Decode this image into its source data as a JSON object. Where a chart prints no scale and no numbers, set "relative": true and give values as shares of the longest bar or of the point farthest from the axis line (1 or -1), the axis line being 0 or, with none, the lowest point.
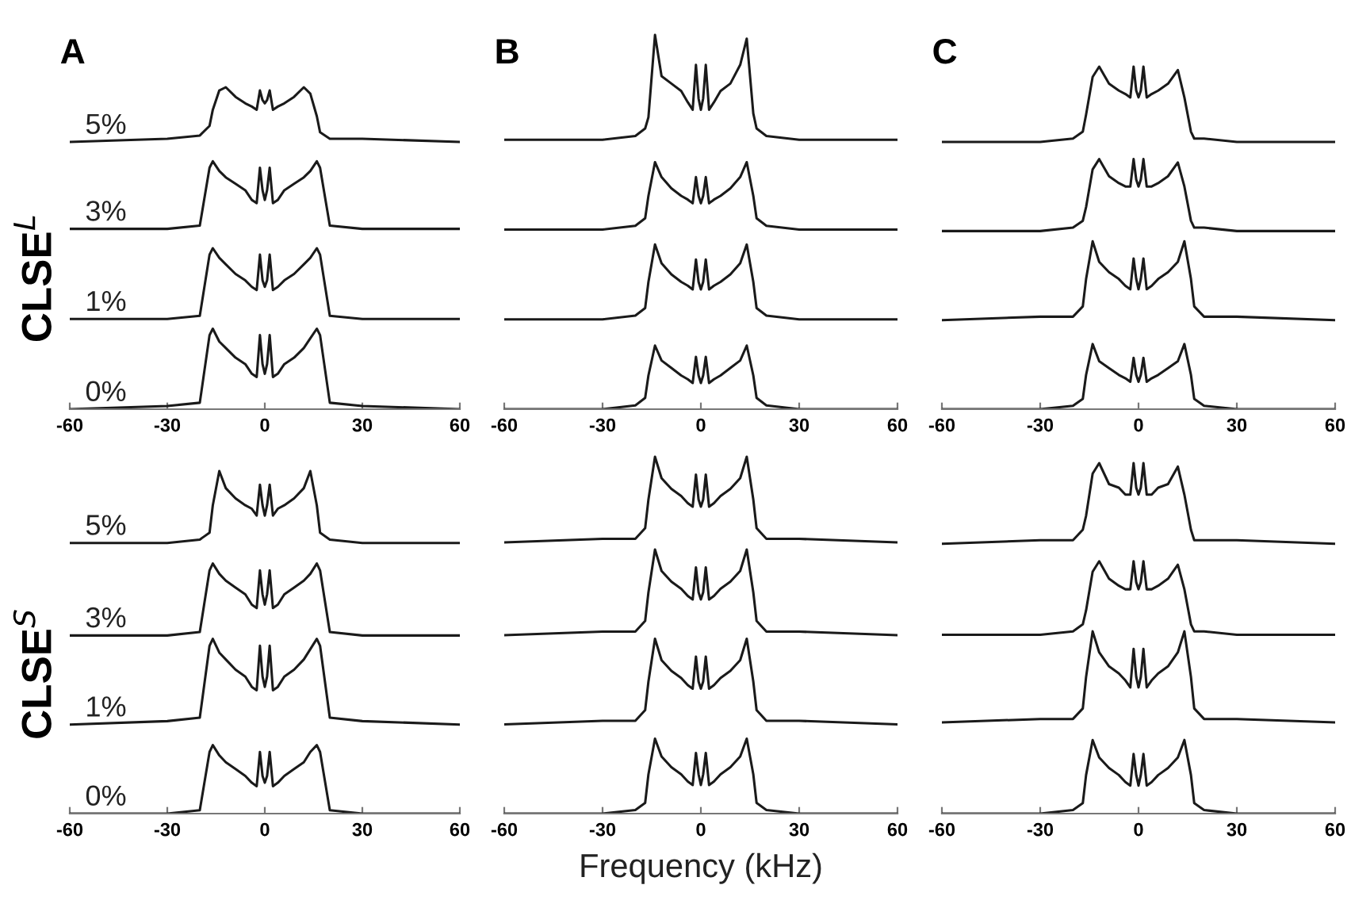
{
  "chart_data": [
    {
      "type": "line",
      "relative": true,
      "title": "A",
      "ylabel": "CLSE$^{L}$",
      "xlim": [
        -60,
        60
      ],
      "xticks": [
        -60,
        -30,
        0,
        30,
        60
      ],
      "x": [
        -60,
        -30,
        -20,
        -17,
        -16,
        -14,
        -12,
        -9,
        -6,
        -4,
        -2.5,
        -1.5,
        -0.7,
        0,
        0.7,
        1.5,
        2.5,
        4,
        6,
        9,
        12,
        14,
        16,
        17,
        20,
        30,
        60
      ],
      "series": [
        {
          "name": "5%",
          "color": "#1a1a1a",
          "values": [
            0.83,
            0.84,
            0.85,
            0.88,
            0.93,
            0.99,
            1.0,
            0.97,
            0.95,
            0.94,
            0.93,
            0.99,
            0.96,
            0.95,
            0.96,
            0.99,
            0.93,
            0.94,
            0.95,
            0.97,
            1.0,
            0.98,
            0.91,
            0.86,
            0.84,
            0.84,
            0.83
          ]
        },
        {
          "name": "3%",
          "color": "#1a1a1a",
          "values": [
            0.56,
            0.56,
            0.57,
            0.75,
            0.77,
            0.74,
            0.72,
            0.7,
            0.68,
            0.65,
            0.64,
            0.75,
            0.68,
            0.65,
            0.68,
            0.75,
            0.64,
            0.65,
            0.68,
            0.7,
            0.72,
            0.74,
            0.77,
            0.75,
            0.57,
            0.56,
            0.56
          ]
        },
        {
          "name": "1%",
          "color": "#1a1a1a",
          "values": [
            0.28,
            0.28,
            0.29,
            0.48,
            0.5,
            0.47,
            0.45,
            0.42,
            0.4,
            0.38,
            0.37,
            0.48,
            0.4,
            0.38,
            0.4,
            0.48,
            0.37,
            0.38,
            0.4,
            0.42,
            0.45,
            0.47,
            0.5,
            0.48,
            0.29,
            0.28,
            0.28
          ]
        },
        {
          "name": "0%",
          "color": "#1a1a1a",
          "values": [
            0,
            0.01,
            0.02,
            0.23,
            0.25,
            0.21,
            0.19,
            0.16,
            0.14,
            0.11,
            0.1,
            0.23,
            0.14,
            0.11,
            0.14,
            0.23,
            0.1,
            0.11,
            0.14,
            0.16,
            0.19,
            0.22,
            0.25,
            0.23,
            0.02,
            0.01,
            0
          ]
        }
      ]
    },
    {
      "type": "line",
      "relative": true,
      "title": "B",
      "xlim": [
        -60,
        60
      ],
      "xticks": [
        -60,
        -30,
        0,
        30,
        60
      ],
      "x": [
        -60,
        -30,
        -20,
        -17,
        -16,
        -14,
        -12,
        -9,
        -6,
        -4,
        -2.5,
        -1.5,
        -0.7,
        0,
        0.7,
        1.5,
        2.5,
        4,
        6,
        9,
        12,
        14,
        16,
        17,
        20,
        30,
        60
      ],
      "series": [
        {
          "color": "#1a1a1a",
          "values": [
            0.72,
            0.72,
            0.73,
            0.75,
            0.78,
            1.0,
            0.89,
            0.87,
            0.85,
            0.82,
            0.8,
            0.92,
            0.83,
            0.8,
            0.83,
            0.92,
            0.8,
            0.82,
            0.85,
            0.87,
            0.92,
            0.99,
            0.79,
            0.75,
            0.73,
            0.72,
            0.72
          ]
        },
        {
          "color": "#1a1a1a",
          "values": [
            0.48,
            0.48,
            0.49,
            0.51,
            0.57,
            0.66,
            0.62,
            0.59,
            0.57,
            0.56,
            0.55,
            0.62,
            0.57,
            0.55,
            0.57,
            0.62,
            0.55,
            0.56,
            0.57,
            0.59,
            0.62,
            0.66,
            0.57,
            0.51,
            0.49,
            0.48,
            0.48
          ]
        },
        {
          "color": "#1a1a1a",
          "values": [
            0.24,
            0.24,
            0.25,
            0.27,
            0.34,
            0.44,
            0.39,
            0.36,
            0.34,
            0.33,
            0.32,
            0.4,
            0.34,
            0.32,
            0.34,
            0.4,
            0.32,
            0.33,
            0.34,
            0.36,
            0.39,
            0.44,
            0.34,
            0.27,
            0.25,
            0.24,
            0.24
          ]
        },
        {
          "color": "#1a1a1a",
          "values": [
            0,
            0,
            0.01,
            0.03,
            0.09,
            0.17,
            0.13,
            0.11,
            0.09,
            0.08,
            0.07,
            0.14,
            0.09,
            0.07,
            0.09,
            0.14,
            0.07,
            0.08,
            0.09,
            0.11,
            0.13,
            0.17,
            0.09,
            0.03,
            0.01,
            0,
            0
          ]
        }
      ]
    },
    {
      "type": "line",
      "relative": true,
      "title": "C",
      "xlim": [
        -60,
        60
      ],
      "xticks": [
        -60,
        -30,
        0,
        30,
        60
      ],
      "x": [
        -60,
        -30,
        -20,
        -17,
        -16,
        -14,
        -12,
        -9,
        -6,
        -4,
        -2.5,
        -1.5,
        -0.7,
        0,
        0.7,
        1.5,
        2.5,
        4,
        6,
        9,
        12,
        14,
        16,
        17,
        20,
        30,
        60
      ],
      "series": [
        {
          "color": "#1a1a1a",
          "values": [
            0.78,
            0.78,
            0.79,
            0.81,
            0.86,
            0.97,
            1.0,
            0.95,
            0.93,
            0.92,
            0.91,
            1.0,
            0.93,
            0.91,
            0.93,
            1.0,
            0.91,
            0.92,
            0.93,
            0.95,
            0.99,
            0.91,
            0.81,
            0.79,
            0.79,
            0.78,
            0.78
          ]
        },
        {
          "color": "#1a1a1a",
          "values": [
            0.52,
            0.52,
            0.53,
            0.55,
            0.59,
            0.7,
            0.73,
            0.68,
            0.66,
            0.65,
            0.65,
            0.73,
            0.67,
            0.65,
            0.67,
            0.73,
            0.65,
            0.65,
            0.66,
            0.68,
            0.72,
            0.65,
            0.55,
            0.53,
            0.53,
            0.52,
            0.52
          ]
        },
        {
          "color": "#1a1a1a",
          "values": [
            0.26,
            0.27,
            0.27,
            0.3,
            0.38,
            0.49,
            0.43,
            0.4,
            0.38,
            0.36,
            0.35,
            0.44,
            0.38,
            0.35,
            0.38,
            0.44,
            0.35,
            0.36,
            0.38,
            0.4,
            0.43,
            0.49,
            0.38,
            0.3,
            0.27,
            0.27,
            0.26
          ]
        },
        {
          "color": "#1a1a1a",
          "values": [
            0,
            0,
            0.01,
            0.03,
            0.1,
            0.19,
            0.14,
            0.12,
            0.1,
            0.09,
            0.08,
            0.15,
            0.1,
            0.08,
            0.1,
            0.15,
            0.08,
            0.09,
            0.1,
            0.12,
            0.14,
            0.19,
            0.1,
            0.03,
            0.01,
            0,
            0
          ]
        }
      ]
    },
    {
      "type": "line",
      "relative": true,
      "ylabel": "CLSE$^{S}$",
      "xlim": [
        -60,
        60
      ],
      "xticks": [
        -60,
        -30,
        0,
        30,
        60
      ],
      "x": [
        -60,
        -30,
        -20,
        -17,
        -16,
        -14,
        -12,
        -9,
        -6,
        -4,
        -2.5,
        -1.5,
        -0.7,
        0,
        0.7,
        1.5,
        2.5,
        4,
        6,
        9,
        12,
        14,
        16,
        17,
        20,
        30,
        60
      ],
      "series": [
        {
          "name": "5%",
          "color": "#1a1a1a",
          "values": [
            0.79,
            0.79,
            0.8,
            0.82,
            0.9,
            1.0,
            0.95,
            0.92,
            0.9,
            0.89,
            0.87,
            0.96,
            0.9,
            0.87,
            0.9,
            0.96,
            0.87,
            0.89,
            0.9,
            0.92,
            0.95,
            1.0,
            0.9,
            0.82,
            0.8,
            0.79,
            0.79
          ]
        },
        {
          "name": "3%",
          "color": "#1a1a1a",
          "values": [
            0.52,
            0.52,
            0.53,
            0.71,
            0.73,
            0.7,
            0.68,
            0.66,
            0.64,
            0.61,
            0.6,
            0.71,
            0.64,
            0.61,
            0.64,
            0.71,
            0.6,
            0.61,
            0.64,
            0.66,
            0.68,
            0.7,
            0.73,
            0.71,
            0.53,
            0.52,
            0.52
          ]
        },
        {
          "name": "1%",
          "color": "#1a1a1a",
          "values": [
            0.26,
            0.27,
            0.28,
            0.49,
            0.51,
            0.47,
            0.45,
            0.42,
            0.4,
            0.37,
            0.36,
            0.49,
            0.4,
            0.37,
            0.4,
            0.49,
            0.36,
            0.37,
            0.4,
            0.42,
            0.45,
            0.48,
            0.51,
            0.49,
            0.28,
            0.27,
            0.26
          ]
        },
        {
          "name": "0%",
          "color": "#1a1a1a",
          "values": [
            0,
            0,
            0.01,
            0.18,
            0.2,
            0.17,
            0.15,
            0.13,
            0.11,
            0.09,
            0.08,
            0.18,
            0.11,
            0.09,
            0.11,
            0.18,
            0.08,
            0.09,
            0.11,
            0.13,
            0.15,
            0.18,
            0.2,
            0.18,
            0.01,
            0,
            0
          ]
        }
      ]
    },
    {
      "type": "line",
      "relative": true,
      "xlabel": "Frequency (kHz)",
      "xlim": [
        -60,
        60
      ],
      "xticks": [
        -60,
        -30,
        0,
        30,
        60
      ],
      "x": [
        -60,
        -30,
        -20,
        -17,
        -16,
        -14,
        -12,
        -9,
        -6,
        -4,
        -2.5,
        -1.5,
        -0.7,
        0,
        0.7,
        1.5,
        2.5,
        4,
        6,
        9,
        12,
        14,
        16,
        17,
        20,
        30,
        60
      ],
      "series": [
        {
          "color": "#1a1a1a",
          "values": [
            0.76,
            0.77,
            0.77,
            0.8,
            0.88,
            1.0,
            0.94,
            0.91,
            0.89,
            0.87,
            0.86,
            0.95,
            0.88,
            0.86,
            0.88,
            0.95,
            0.86,
            0.87,
            0.89,
            0.91,
            0.94,
            1.0,
            0.88,
            0.8,
            0.77,
            0.77,
            0.76
          ]
        },
        {
          "color": "#1a1a1a",
          "values": [
            0.5,
            0.51,
            0.51,
            0.54,
            0.62,
            0.74,
            0.68,
            0.65,
            0.63,
            0.61,
            0.6,
            0.69,
            0.62,
            0.6,
            0.62,
            0.69,
            0.6,
            0.61,
            0.63,
            0.65,
            0.68,
            0.74,
            0.62,
            0.54,
            0.51,
            0.51,
            0.5
          ]
        },
        {
          "color": "#1a1a1a",
          "values": [
            0.25,
            0.26,
            0.26,
            0.29,
            0.37,
            0.49,
            0.43,
            0.4,
            0.38,
            0.36,
            0.35,
            0.44,
            0.37,
            0.35,
            0.37,
            0.44,
            0.35,
            0.36,
            0.38,
            0.4,
            0.43,
            0.49,
            0.37,
            0.29,
            0.26,
            0.26,
            0.25
          ]
        },
        {
          "color": "#1a1a1a",
          "values": [
            0,
            0,
            0.01,
            0.03,
            0.11,
            0.21,
            0.16,
            0.13,
            0.11,
            0.09,
            0.08,
            0.17,
            0.11,
            0.08,
            0.11,
            0.17,
            0.08,
            0.09,
            0.11,
            0.13,
            0.16,
            0.21,
            0.11,
            0.03,
            0.01,
            0,
            0
          ]
        }
      ]
    },
    {
      "type": "line",
      "relative": true,
      "xlim": [
        -60,
        60
      ],
      "xticks": [
        -60,
        -30,
        0,
        30,
        60
      ],
      "x": [
        -60,
        -30,
        -20,
        -17,
        -16,
        -14,
        -12,
        -9,
        -6,
        -4,
        -2.5,
        -1.5,
        -0.7,
        0,
        0.7,
        1.5,
        2.5,
        4,
        6,
        9,
        12,
        14,
        16,
        17,
        20,
        30,
        60
      ],
      "series": [
        {
          "color": "#1a1a1a",
          "values": [
            0.77,
            0.78,
            0.78,
            0.81,
            0.85,
            0.97,
            1.0,
            0.94,
            0.93,
            0.91,
            0.91,
            1.0,
            0.93,
            0.91,
            0.93,
            1.0,
            0.91,
            0.91,
            0.93,
            0.94,
            0.99,
            0.91,
            0.81,
            0.78,
            0.78,
            0.78,
            0.77
          ]
        },
        {
          "color": "#1a1a1a",
          "values": [
            0.51,
            0.51,
            0.52,
            0.54,
            0.58,
            0.69,
            0.72,
            0.67,
            0.65,
            0.64,
            0.64,
            0.72,
            0.66,
            0.64,
            0.66,
            0.72,
            0.64,
            0.64,
            0.65,
            0.67,
            0.71,
            0.64,
            0.54,
            0.52,
            0.52,
            0.51,
            0.51
          ]
        },
        {
          "color": "#1a1a1a",
          "values": [
            0.26,
            0.27,
            0.27,
            0.3,
            0.39,
            0.52,
            0.46,
            0.42,
            0.4,
            0.38,
            0.36,
            0.47,
            0.39,
            0.36,
            0.39,
            0.47,
            0.36,
            0.38,
            0.4,
            0.42,
            0.46,
            0.52,
            0.39,
            0.3,
            0.27,
            0.27,
            0.26
          ]
        },
        {
          "color": "#1a1a1a",
          "values": [
            0,
            0,
            0.01,
            0.03,
            0.11,
            0.21,
            0.16,
            0.13,
            0.11,
            0.09,
            0.08,
            0.17,
            0.11,
            0.08,
            0.11,
            0.17,
            0.08,
            0.09,
            0.11,
            0.13,
            0.16,
            0.21,
            0.11,
            0.03,
            0.01,
            0,
            0
          ]
        }
      ]
    }
  ]
}
